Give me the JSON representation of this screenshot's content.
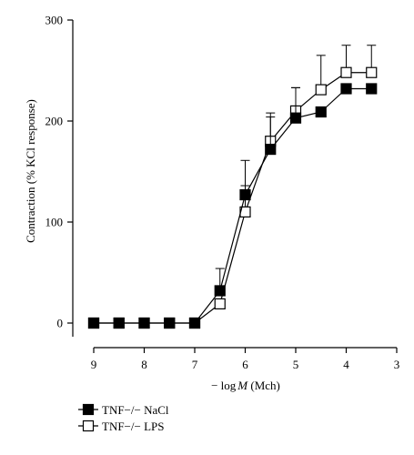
{
  "chart_data": {
    "type": "line",
    "xlabel_prefix": "− log",
    "xlabel_var": "M",
    "xlabel_suffix": " (Mch)",
    "ylabel": "Contraction (% KCl response)",
    "xlim": [
      9,
      3
    ],
    "ylim": [
      0,
      300
    ],
    "x_ticks": [
      9,
      8,
      7,
      6,
      5,
      4,
      3
    ],
    "y_ticks": [
      0,
      100,
      200,
      300
    ],
    "grid": false,
    "legend_position": "bottom-left",
    "series": [
      {
        "name": "TNF−/− NaCl",
        "marker": "filled-square",
        "color": "#000000",
        "x": [
          9,
          8.5,
          8,
          7.5,
          7,
          6.5,
          6,
          5.5,
          5,
          4.5,
          4,
          3.5
        ],
        "y": [
          0,
          0,
          0,
          0,
          0,
          32,
          127,
          172,
          203,
          209,
          232,
          232
        ],
        "error": [
          0,
          0,
          0,
          0,
          0,
          22,
          34,
          32,
          30,
          0,
          0,
          0
        ]
      },
      {
        "name": "TNF−/− LPS",
        "marker": "open-square",
        "color": "#000000",
        "x": [
          9,
          8.5,
          8,
          7.5,
          7,
          6.5,
          6,
          5.5,
          5,
          4.5,
          4,
          3.5
        ],
        "y": [
          0,
          0,
          0,
          0,
          0,
          19,
          110,
          180,
          210,
          231,
          248,
          248
        ],
        "error": [
          0,
          0,
          0,
          0,
          0,
          0,
          26,
          28,
          23,
          34,
          27,
          27
        ]
      }
    ]
  }
}
